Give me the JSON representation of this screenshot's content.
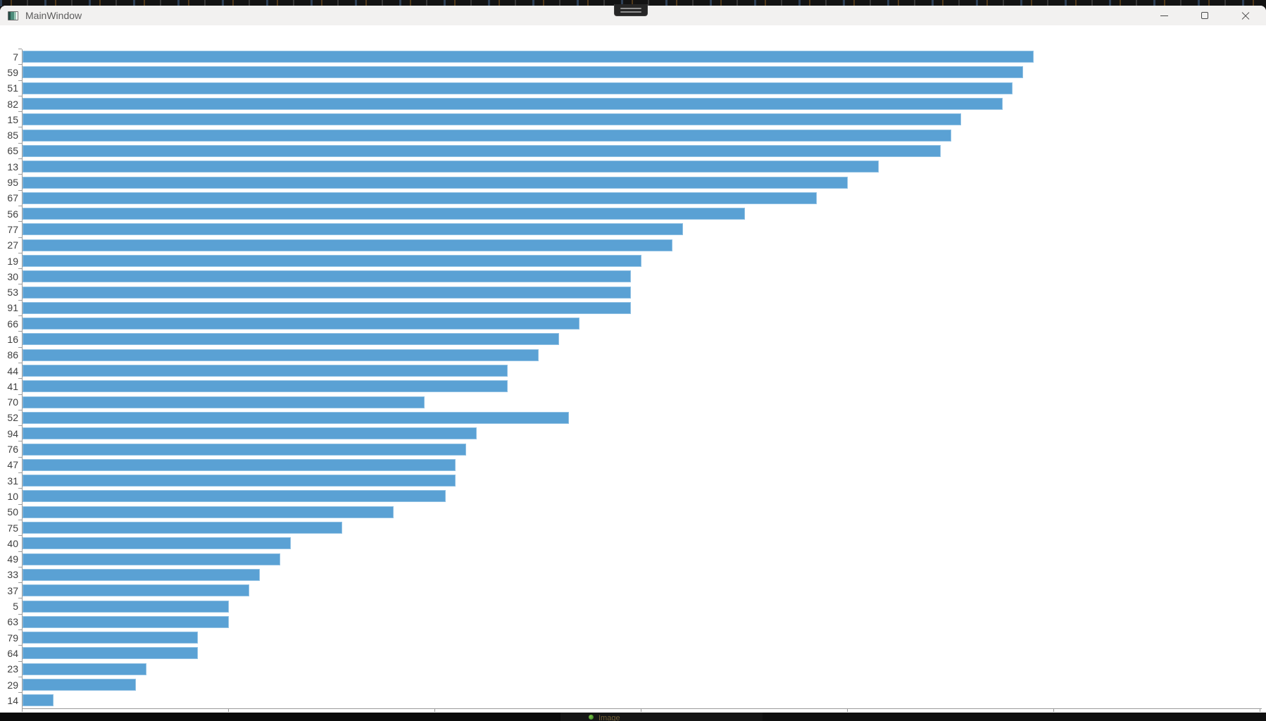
{
  "window": {
    "title": "MainWindow",
    "icon": "window-icon",
    "controls": {
      "minimize_icon": "minimize-icon",
      "maximize_icon": "maximize-icon",
      "close_icon": "close-icon"
    }
  },
  "desktop": {
    "top_tab_icon": "grip-handle-icon",
    "taskbar": {
      "status_icon": "green-status-dot",
      "status_text": "Image"
    }
  },
  "chart_data": {
    "type": "bar",
    "orientation": "horizontal",
    "title": "",
    "xlabel": "",
    "ylabel": "",
    "categories": [
      "7",
      "59",
      "51",
      "82",
      "15",
      "85",
      "65",
      "13",
      "95",
      "67",
      "56",
      "77",
      "27",
      "19",
      "30",
      "53",
      "91",
      "66",
      "16",
      "86",
      "44",
      "41",
      "70",
      "52",
      "94",
      "76",
      "47",
      "31",
      "10",
      "50",
      "75",
      "40",
      "49",
      "33",
      "37",
      "5",
      "63",
      "79",
      "64",
      "23",
      "29",
      "14"
    ],
    "values": [
      98,
      97,
      96,
      95,
      91,
      90,
      89,
      83,
      80,
      77,
      70,
      64,
      63,
      60,
      59,
      59,
      59,
      54,
      52,
      50,
      47,
      47,
      39,
      53,
      44,
      43,
      42,
      42,
      41,
      36,
      31,
      26,
      25,
      23,
      22,
      20,
      20,
      17,
      17,
      12,
      11,
      3
    ],
    "xlim": [
      0,
      120
    ],
    "x_ticks": [
      0,
      20,
      40,
      60,
      80,
      100,
      120
    ],
    "grid": false,
    "legend": false,
    "bar_color": "#5aa1d4",
    "bar_edge_color": "#8fc0e3",
    "axis_color": "#9a9a9a",
    "tick_label_color": "#3f3f3f"
  }
}
